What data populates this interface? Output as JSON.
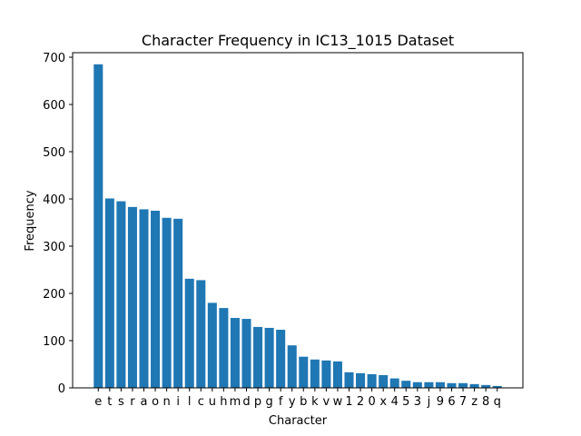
{
  "chart_data": {
    "type": "bar",
    "title": "Character Frequency in IC13_1015 Dataset",
    "xlabel": "Character",
    "ylabel": "Frequency",
    "ylim": [
      0,
      700
    ],
    "yticks": [
      0,
      100,
      200,
      300,
      400,
      500,
      600,
      700
    ],
    "bar_color": "#1f77b4",
    "grid": false,
    "categories": [
      "e",
      "t",
      "s",
      "r",
      "a",
      "o",
      "n",
      "i",
      "l",
      "c",
      "u",
      "h",
      "m",
      "d",
      "p",
      "g",
      "f",
      "y",
      "b",
      "k",
      "v",
      "w",
      "1",
      "2",
      "0",
      "x",
      "4",
      "5",
      "3",
      "j",
      "9",
      "6",
      "7",
      "z",
      "8",
      "q"
    ],
    "values": [
      685,
      401,
      395,
      383,
      378,
      375,
      360,
      358,
      231,
      228,
      180,
      169,
      148,
      146,
      129,
      127,
      123,
      90,
      66,
      60,
      58,
      56,
      33,
      31,
      29,
      27,
      20,
      15,
      12,
      12,
      12,
      10,
      10,
      8,
      6,
      4
    ]
  }
}
